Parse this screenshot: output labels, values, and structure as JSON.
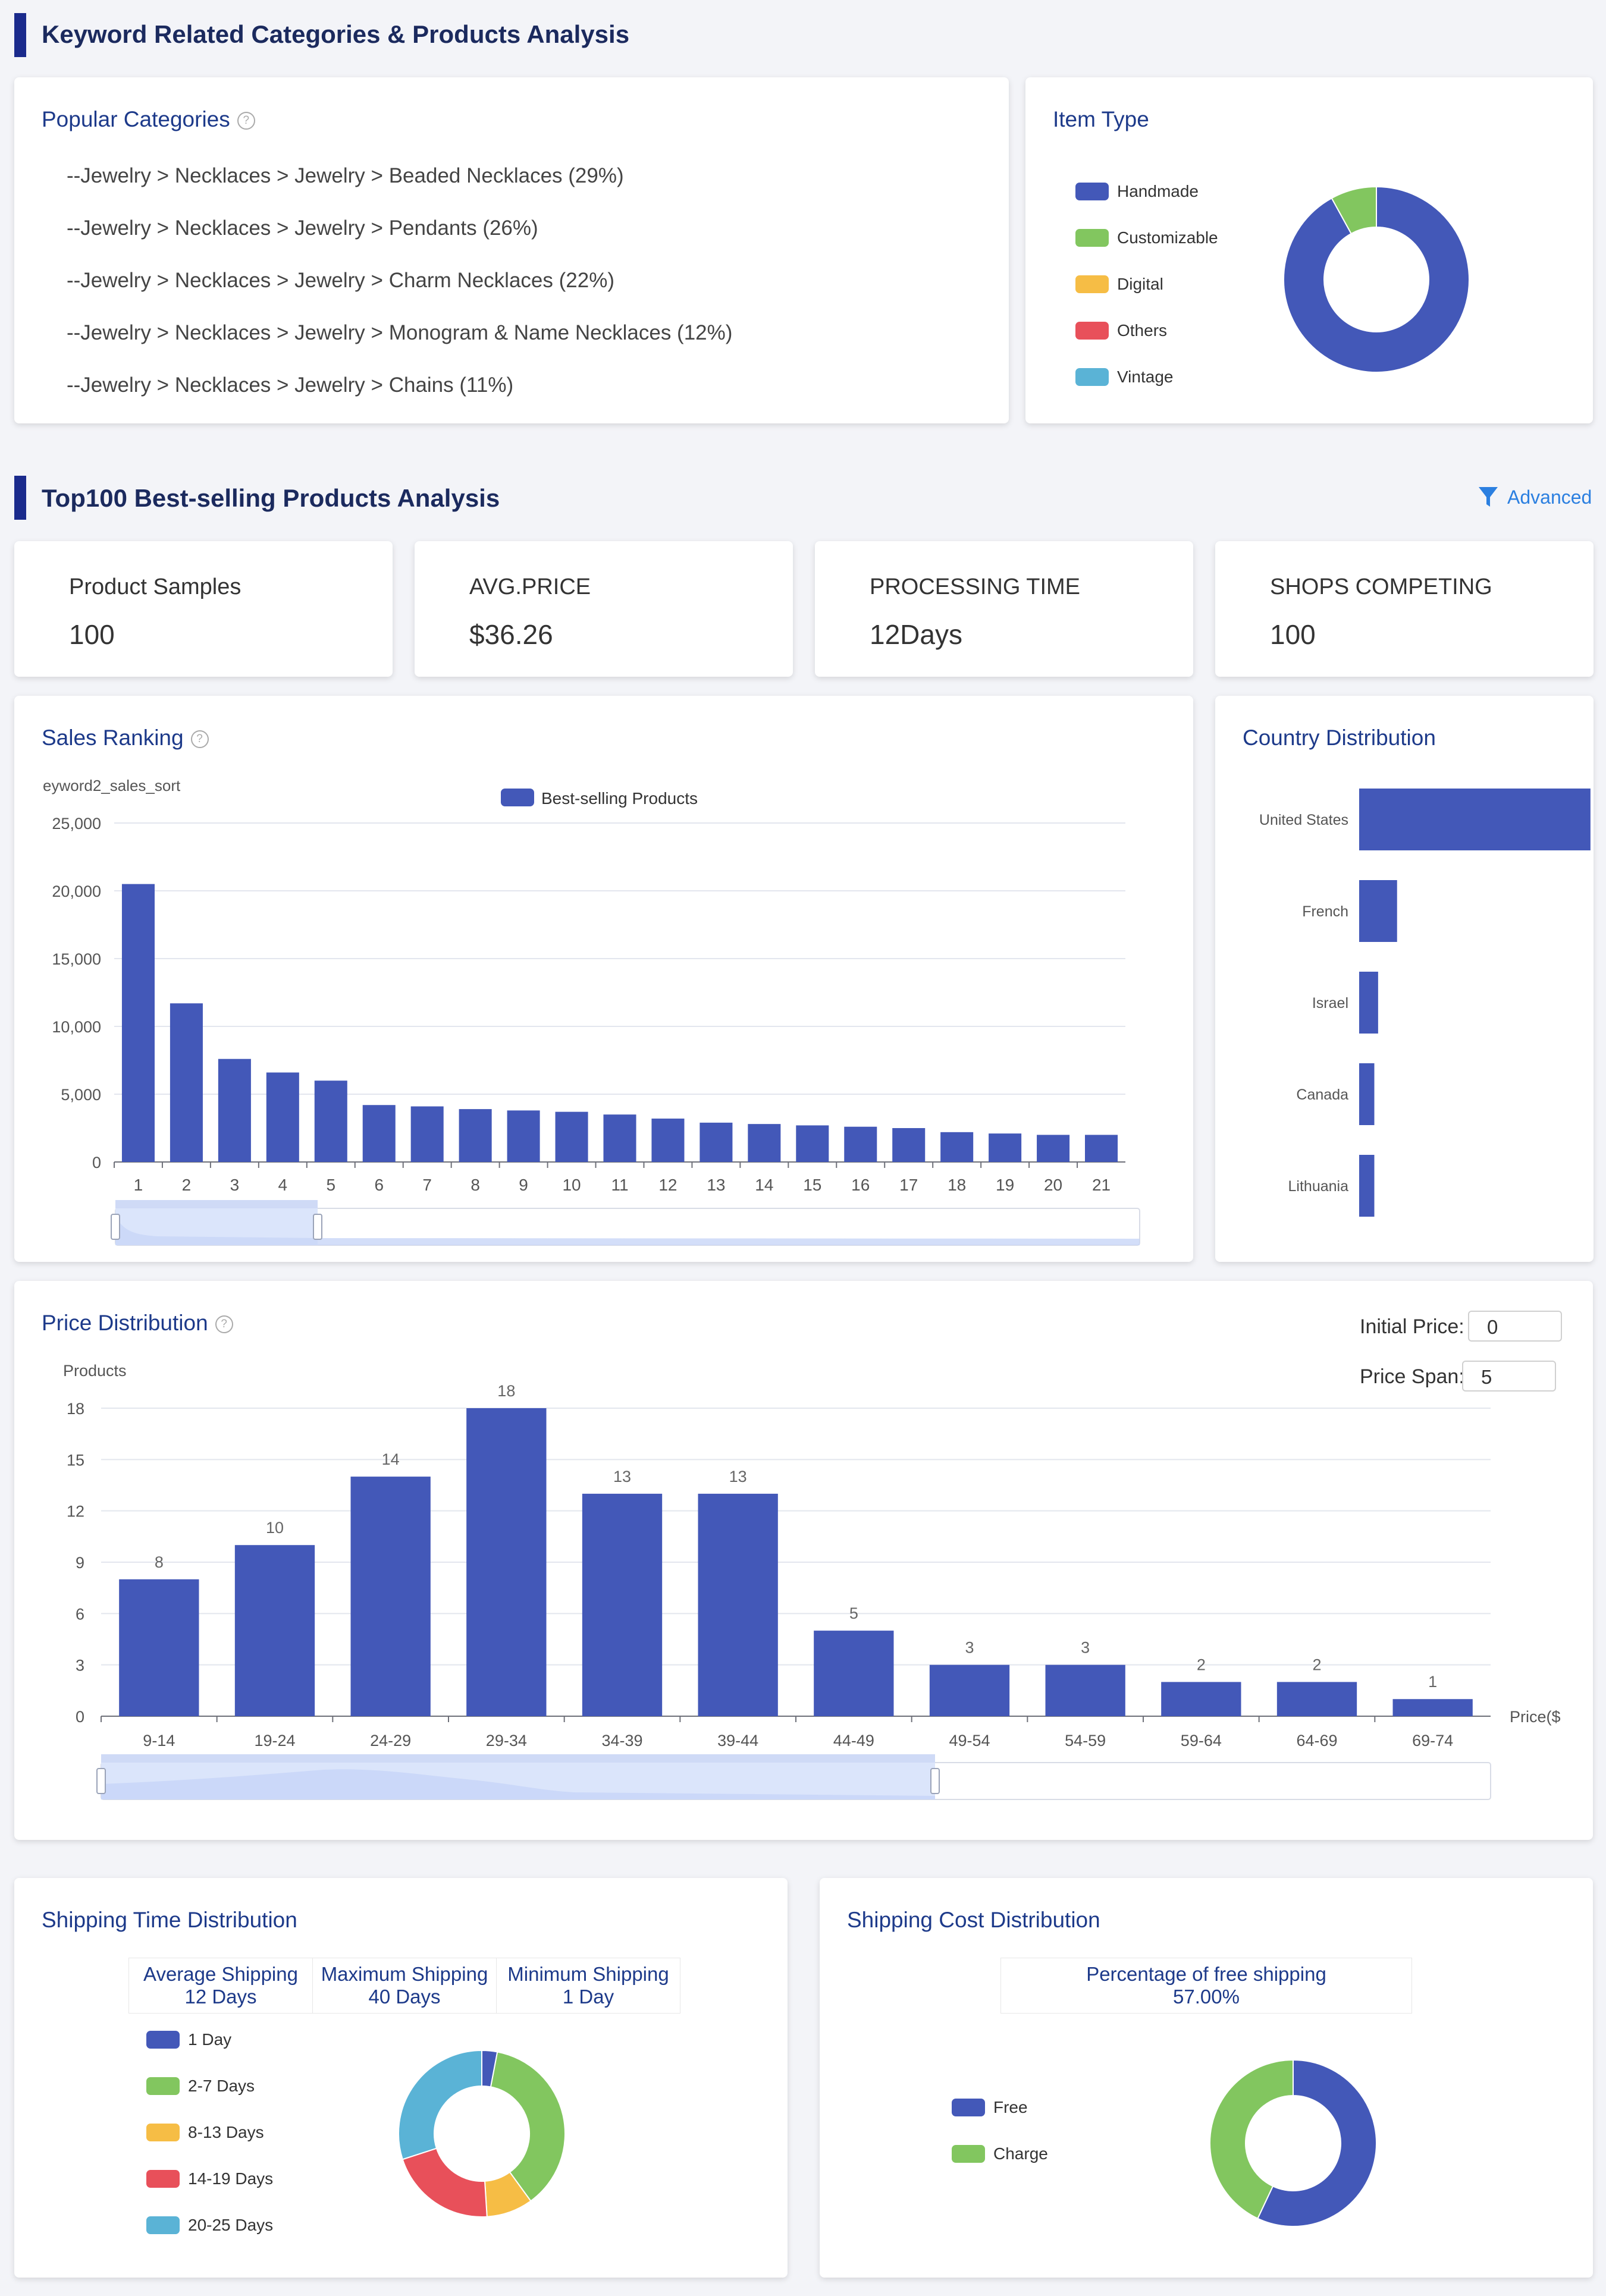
{
  "section1": {
    "title": "Keyword Related Categories & Products Analysis"
  },
  "popular_categories": {
    "title": "Popular Categories",
    "help_icon": "help-icon",
    "items": [
      "--Jewelry > Necklaces > Jewelry > Beaded Necklaces (29%)",
      "--Jewelry > Necklaces > Jewelry > Pendants (26%)",
      "--Jewelry > Necklaces > Jewelry > Charm Necklaces (22%)",
      "--Jewelry > Necklaces > Jewelry > Monogram & Name Necklaces (12%)",
      "--Jewelry > Necklaces > Jewelry > Chains (11%)"
    ]
  },
  "item_type": {
    "title": "Item Type",
    "legend": [
      "Handmade",
      "Customizable",
      "Digital",
      "Others",
      "Vintage"
    ],
    "colors": [
      "#4358b8",
      "#82c65f",
      "#f6bd45",
      "#e8505a",
      "#5ab3d6"
    ]
  },
  "section2": {
    "title": "Top100 Best-selling Products Analysis",
    "advanced_label": "Advanced",
    "filter_icon": "filter-icon"
  },
  "stats": [
    {
      "label": "Product Samples",
      "value": "100"
    },
    {
      "label": "AVG.PRICE",
      "value": "$36.26"
    },
    {
      "label": "PROCESSING TIME",
      "value": "12Days"
    },
    {
      "label": "SHOPS COMPETING",
      "value": "100"
    }
  ],
  "sales_ranking": {
    "title": "Sales Ranking",
    "y_axis_name": "eyword2_sales_sort",
    "legend": "Best-selling Products",
    "y_ticks": [
      "0",
      "5,000",
      "10,000",
      "15,000",
      "20,000",
      "25,000"
    ]
  },
  "country_distribution": {
    "title": "Country Distribution"
  },
  "price_distribution": {
    "title": "Price Distribution",
    "y_axis_name": "Products",
    "x_axis_name": "Price($",
    "y_ticks": [
      "0",
      "3",
      "6",
      "9",
      "12",
      "15",
      "18"
    ],
    "initial_price_label": "Initial Price:",
    "initial_price_value": "0",
    "price_span_label": "Price Span:",
    "price_span_value": "5"
  },
  "shipping_time": {
    "title": "Shipping Time Distribution",
    "stats": [
      {
        "label": "Average Shipping",
        "value": "12 Days"
      },
      {
        "label": "Maximum Shipping",
        "value": "40 Days"
      },
      {
        "label": "Minimum Shipping",
        "value": "1 Day"
      }
    ],
    "legend": [
      "1 Day",
      "2-7 Days",
      "8-13 Days",
      "14-19 Days",
      "20-25 Days"
    ]
  },
  "shipping_cost": {
    "title": "Shipping Cost Distribution",
    "free_label": "Percentage of free shipping",
    "free_value": "57.00%",
    "legend": [
      "Free",
      "Charge"
    ]
  },
  "chart_data": [
    {
      "id": "item_type",
      "type": "pie",
      "categories": [
        "Handmade",
        "Customizable",
        "Digital",
        "Others",
        "Vintage"
      ],
      "values": [
        92,
        8,
        0,
        0,
        0
      ],
      "colors": [
        "#4358b8",
        "#82c65f",
        "#f6bd45",
        "#e8505a",
        "#5ab3d6"
      ],
      "legend_position": "left"
    },
    {
      "id": "sales_ranking",
      "type": "bar",
      "categories": [
        "1",
        "2",
        "3",
        "4",
        "5",
        "6",
        "7",
        "8",
        "9",
        "10",
        "11",
        "12",
        "13",
        "14",
        "15",
        "16",
        "17",
        "18",
        "19",
        "20",
        "21"
      ],
      "series": [
        {
          "name": "Best-selling Products",
          "values": [
            20500,
            11700,
            7600,
            6600,
            6000,
            4200,
            4100,
            3900,
            3800,
            3700,
            3500,
            3200,
            2900,
            2800,
            2700,
            2600,
            2500,
            2200,
            2100,
            2000,
            2000
          ]
        }
      ],
      "ylim": [
        0,
        25000
      ],
      "color": "#4358b8",
      "legend_position": "top"
    },
    {
      "id": "country_distribution",
      "type": "bar",
      "orientation": "horizontal",
      "categories": [
        "United States",
        "French",
        "Israel",
        "Canada",
        "Lithuania"
      ],
      "values": [
        61,
        10,
        5,
        4,
        4
      ],
      "color": "#4358b8"
    },
    {
      "id": "price_distribution",
      "type": "bar",
      "categories": [
        "9-14",
        "19-24",
        "24-29",
        "29-34",
        "34-39",
        "39-44",
        "44-49",
        "49-54",
        "54-59",
        "59-64",
        "64-69",
        "69-74"
      ],
      "values": [
        8,
        10,
        14,
        18,
        13,
        13,
        5,
        3,
        3,
        2,
        2,
        1
      ],
      "ylim": [
        0,
        18
      ],
      "xlabel": "Price($",
      "ylabel": "Products",
      "color": "#4358b8"
    },
    {
      "id": "shipping_time",
      "type": "pie",
      "categories": [
        "1 Day",
        "2-7 Days",
        "8-13 Days",
        "14-19 Days",
        "20-25 Days"
      ],
      "values": [
        3,
        37,
        9,
        21,
        30
      ],
      "colors": [
        "#4358b8",
        "#82c65f",
        "#f6bd45",
        "#e8505a",
        "#5ab3d6"
      ]
    },
    {
      "id": "shipping_cost",
      "type": "pie",
      "categories": [
        "Free",
        "Charge"
      ],
      "values": [
        57,
        43
      ],
      "colors": [
        "#4358b8",
        "#82c65f"
      ]
    }
  ]
}
